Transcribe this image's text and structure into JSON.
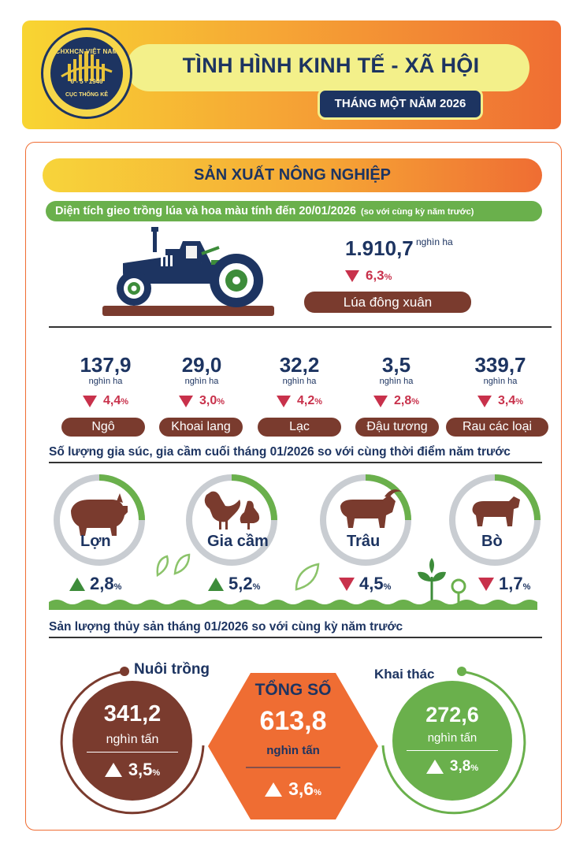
{
  "header": {
    "title": "TÌNH HÌNH KINH TẾ - XÃ HỘI",
    "subtitle": "THÁNG MỘT NĂM 2026",
    "logo_top": "CHXHCN VIỆT NAM",
    "logo_mid": "6 - 5 - 1946",
    "logo_bottom": "CỤC THỐNG KÊ"
  },
  "agriculture": {
    "section_title": "SẢN XUẤT NÔNG NGHIỆP",
    "planting_title": "Diện tích gieo trồng lúa và hoa màu tính đến 20/01/2026",
    "planting_note": "(so với cùng kỳ năm trước)",
    "rice": {
      "value": "1.910,7",
      "unit": "nghìn ha",
      "change": "6,3",
      "pct": "%",
      "direction": "down",
      "label": "Lúa đông xuân"
    },
    "crops": [
      {
        "value": "137,9",
        "unit": "nghìn ha",
        "change": "4,4",
        "pct": "%",
        "direction": "down",
        "label": "Ngô"
      },
      {
        "value": "29,0",
        "unit": "nghìn ha",
        "change": "3,0",
        "pct": "%",
        "direction": "down",
        "label": "Khoai lang"
      },
      {
        "value": "32,2",
        "unit": "nghìn ha",
        "change": "4,2",
        "pct": "%",
        "direction": "down",
        "label": "Lạc"
      },
      {
        "value": "3,5",
        "unit": "nghìn ha",
        "change": "2,8",
        "pct": "%",
        "direction": "down",
        "label": "Đậu tương"
      },
      {
        "value": "339,7",
        "unit": "nghìn ha",
        "change": "3,4",
        "pct": "%",
        "direction": "down",
        "label": "Rau các loại"
      }
    ]
  },
  "livestock": {
    "title": "Số lượng gia súc, gia cầm cuối tháng 01/2026 so với cùng thời điểm năm trước",
    "items": [
      {
        "label": "Lợn",
        "change": "2,8",
        "pct": "%",
        "direction": "up"
      },
      {
        "label": "Gia cầm",
        "change": "5,2",
        "pct": "%",
        "direction": "up"
      },
      {
        "label": "Trâu",
        "change": "4,5",
        "pct": "%",
        "direction": "down"
      },
      {
        "label": "Bò",
        "change": "1,7",
        "pct": "%",
        "direction": "down"
      }
    ]
  },
  "fishery": {
    "title": "Sản lượng thủy sản tháng 01/2026 so với cùng kỳ năm trước",
    "aquaculture": {
      "label": "Nuôi trồng",
      "value": "341,2",
      "unit": "nghìn tấn",
      "change": "3,5",
      "pct": "%",
      "direction": "up"
    },
    "total": {
      "label": "TỔNG SỐ",
      "value": "613,8",
      "unit": "nghìn tấn",
      "change": "3,6",
      "pct": "%",
      "direction": "up"
    },
    "capture": {
      "label": "Khai thác",
      "value": "272,6",
      "unit": "nghìn tấn",
      "change": "3,8",
      "pct": "%",
      "direction": "up"
    }
  },
  "colors": {
    "navy": "#1d3461",
    "orange": "#ef6d33",
    "yellow": "#f8d532",
    "green": "#6ab04c",
    "brown": "#7a3b2e",
    "red": "#c8314b"
  }
}
